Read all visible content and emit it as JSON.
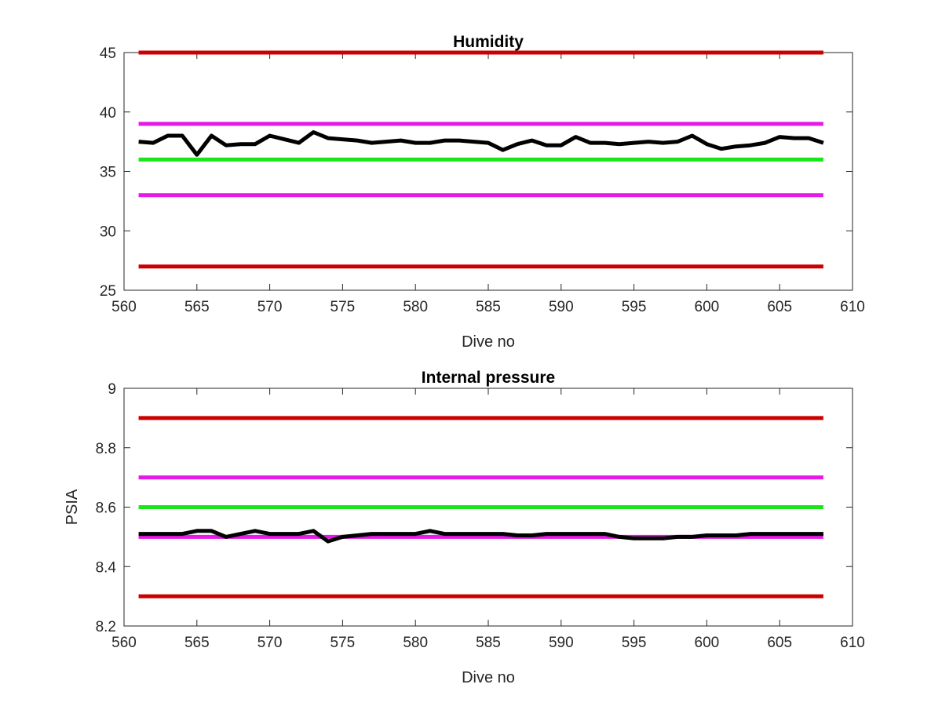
{
  "chart_data": [
    {
      "type": "line",
      "title": "Humidity",
      "xlabel": "Dive no",
      "ylabel": "",
      "xlim": [
        560,
        610
      ],
      "ylim": [
        25,
        45
      ],
      "grid": false,
      "xticks": [
        560,
        565,
        570,
        575,
        580,
        585,
        590,
        595,
        600,
        605,
        610
      ],
      "yticks": [
        25,
        30,
        35,
        40,
        45
      ],
      "thresholds": [
        {
          "value": 45,
          "color": "#cc0000",
          "x": [
            561,
            608
          ]
        },
        {
          "value": 39,
          "color": "#e619e6",
          "x": [
            561,
            608
          ]
        },
        {
          "value": 36,
          "color": "#19e619",
          "x": [
            561,
            608
          ]
        },
        {
          "value": 33,
          "color": "#e619e6",
          "x": [
            561,
            608
          ]
        },
        {
          "value": 27,
          "color": "#cc0000",
          "x": [
            561,
            608
          ]
        }
      ],
      "series": [
        {
          "color": "#000000",
          "x": [
            561,
            562,
            563,
            564,
            565,
            566,
            567,
            568,
            569,
            570,
            571,
            572,
            573,
            574,
            575,
            576,
            577,
            578,
            579,
            580,
            581,
            582,
            583,
            584,
            585,
            586,
            587,
            588,
            589,
            590,
            591,
            592,
            593,
            594,
            595,
            596,
            597,
            598,
            599,
            600,
            601,
            602,
            603,
            604,
            605,
            606,
            607,
            608
          ],
          "y": [
            37.5,
            37.4,
            38.0,
            38.0,
            36.4,
            38.0,
            37.2,
            37.3,
            37.3,
            38.0,
            37.7,
            37.4,
            38.3,
            37.8,
            37.7,
            37.6,
            37.4,
            37.5,
            37.6,
            37.4,
            37.4,
            37.6,
            37.6,
            37.5,
            37.4,
            36.8,
            37.3,
            37.6,
            37.2,
            37.2,
            37.9,
            37.4,
            37.4,
            37.3,
            37.4,
            37.5,
            37.4,
            37.5,
            38.0,
            37.3,
            36.9,
            37.1,
            37.2,
            37.4,
            37.9,
            37.8,
            37.8,
            37.4
          ]
        }
      ]
    },
    {
      "type": "line",
      "title": "Internal pressure",
      "xlabel": "Dive no",
      "ylabel": "PSIA",
      "xlim": [
        560,
        610
      ],
      "ylim": [
        8.2,
        9
      ],
      "grid": false,
      "xticks": [
        560,
        565,
        570,
        575,
        580,
        585,
        590,
        595,
        600,
        605,
        610
      ],
      "yticks": [
        8.2,
        8.4,
        8.6,
        8.8,
        9
      ],
      "thresholds": [
        {
          "value": 8.9,
          "color": "#cc0000",
          "x": [
            561,
            608
          ]
        },
        {
          "value": 8.7,
          "color": "#e619e6",
          "x": [
            561,
            608
          ]
        },
        {
          "value": 8.6,
          "color": "#19e619",
          "x": [
            561,
            608
          ]
        },
        {
          "value": 8.5,
          "color": "#e619e6",
          "x": [
            561,
            608
          ]
        },
        {
          "value": 8.3,
          "color": "#cc0000",
          "x": [
            561,
            608
          ]
        }
      ],
      "series": [
        {
          "color": "#000000",
          "x": [
            561,
            562,
            563,
            564,
            565,
            566,
            567,
            568,
            569,
            570,
            571,
            572,
            573,
            574,
            575,
            576,
            577,
            578,
            579,
            580,
            581,
            582,
            583,
            584,
            585,
            586,
            587,
            588,
            589,
            590,
            591,
            592,
            593,
            594,
            595,
            596,
            597,
            598,
            599,
            600,
            601,
            602,
            603,
            604,
            605,
            606,
            607,
            608
          ],
          "y": [
            8.51,
            8.51,
            8.51,
            8.51,
            8.52,
            8.52,
            8.5,
            8.51,
            8.52,
            8.51,
            8.51,
            8.51,
            8.52,
            8.485,
            8.5,
            8.505,
            8.51,
            8.51,
            8.51,
            8.51,
            8.52,
            8.51,
            8.51,
            8.51,
            8.51,
            8.51,
            8.505,
            8.505,
            8.51,
            8.51,
            8.51,
            8.51,
            8.51,
            8.5,
            8.495,
            8.495,
            8.495,
            8.5,
            8.5,
            8.505,
            8.505,
            8.505,
            8.51,
            8.51,
            8.51,
            8.51,
            8.51,
            8.51
          ]
        }
      ]
    }
  ]
}
